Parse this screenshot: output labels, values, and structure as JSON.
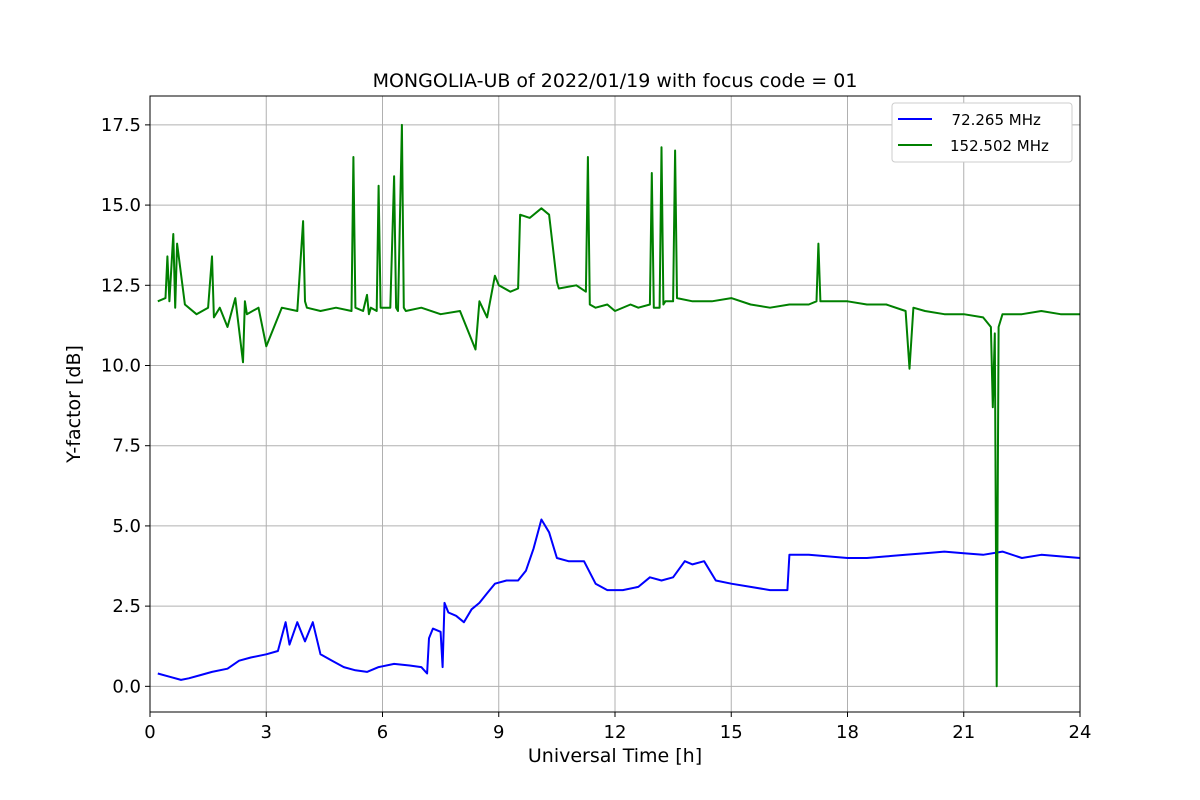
{
  "chart_data": {
    "type": "line",
    "title": "MONGOLIA-UB of 2022/01/19 with focus code = 01",
    "xlabel": "Universal Time [h]",
    "ylabel": "Y-factor [dB]",
    "xlim": [
      0,
      24
    ],
    "ylim": [
      -0.8,
      18.4
    ],
    "xticks": [
      0,
      3,
      6,
      9,
      12,
      15,
      18,
      21,
      24
    ],
    "xtick_labels": [
      "0",
      "3",
      "6",
      "9",
      "12",
      "15",
      "18",
      "21",
      "24"
    ],
    "yticks": [
      0,
      2.5,
      5,
      7.5,
      10,
      12.5,
      15,
      17.5
    ],
    "ytick_labels": [
      "0.0",
      "2.5",
      "5.0",
      "7.5",
      "10.0",
      "12.5",
      "15.0",
      "17.5"
    ],
    "grid": true,
    "legend_position": "top-right",
    "series": [
      {
        "name": "  72.265 MHz",
        "color": "#0000ff",
        "x": [
          0.2,
          0.5,
          0.8,
          1.0,
          1.3,
          1.6,
          2.0,
          2.3,
          2.6,
          3.0,
          3.3,
          3.5,
          3.6,
          3.8,
          4.0,
          4.2,
          4.4,
          4.7,
          5.0,
          5.3,
          5.6,
          5.9,
          6.3,
          6.7,
          7.0,
          7.15,
          7.2,
          7.3,
          7.5,
          7.55,
          7.6,
          7.7,
          7.9,
          8.1,
          8.3,
          8.5,
          8.7,
          8.9,
          9.2,
          9.5,
          9.7,
          9.9,
          10.1,
          10.3,
          10.5,
          10.8,
          11.2,
          11.5,
          11.8,
          12.2,
          12.6,
          12.9,
          13.2,
          13.5,
          13.8,
          14.0,
          14.3,
          14.6,
          15.0,
          15.5,
          16.0,
          16.45,
          16.5,
          17.0,
          17.5,
          18.0,
          18.5,
          19.0,
          19.5,
          20.0,
          20.5,
          21.0,
          21.5,
          22.0,
          22.5,
          23.0,
          23.5,
          24.0
        ],
        "y": [
          0.4,
          0.3,
          0.2,
          0.25,
          0.35,
          0.45,
          0.55,
          0.8,
          0.9,
          1.0,
          1.1,
          2.0,
          1.3,
          2.0,
          1.4,
          2.0,
          1.0,
          0.8,
          0.6,
          0.5,
          0.45,
          0.6,
          0.7,
          0.65,
          0.6,
          0.4,
          1.5,
          1.8,
          1.7,
          0.6,
          2.6,
          2.3,
          2.2,
          2.0,
          2.4,
          2.6,
          2.9,
          3.2,
          3.3,
          3.3,
          3.6,
          4.3,
          5.2,
          4.8,
          4.0,
          3.9,
          3.9,
          3.2,
          3.0,
          3.0,
          3.1,
          3.4,
          3.3,
          3.4,
          3.9,
          3.8,
          3.9,
          3.3,
          3.2,
          3.1,
          3.0,
          3.0,
          4.1,
          4.1,
          4.05,
          4.0,
          4.0,
          4.05,
          4.1,
          4.15,
          4.2,
          4.15,
          4.1,
          4.2,
          4.0,
          4.1,
          4.05,
          4.0
        ]
      },
      {
        "name": "152.502 MHz",
        "color": "#008000",
        "x": [
          0.2,
          0.4,
          0.45,
          0.5,
          0.6,
          0.65,
          0.7,
          0.9,
          1.2,
          1.5,
          1.6,
          1.65,
          1.8,
          2.0,
          2.2,
          2.4,
          2.45,
          2.5,
          2.8,
          3.0,
          3.4,
          3.8,
          3.95,
          4.0,
          4.05,
          4.4,
          4.8,
          5.2,
          5.25,
          5.3,
          5.5,
          5.6,
          5.65,
          5.7,
          5.85,
          5.9,
          5.95,
          6.2,
          6.3,
          6.35,
          6.4,
          6.5,
          6.55,
          6.6,
          7.0,
          7.5,
          8.0,
          8.4,
          8.5,
          8.7,
          8.9,
          9.0,
          9.3,
          9.5,
          9.55,
          9.8,
          10.1,
          10.3,
          10.5,
          10.55,
          11.0,
          11.25,
          11.3,
          11.35,
          11.5,
          11.8,
          12.0,
          12.4,
          12.6,
          12.9,
          12.95,
          13.0,
          13.15,
          13.2,
          13.25,
          13.3,
          13.5,
          13.55,
          13.6,
          14.0,
          14.5,
          15.0,
          15.5,
          16.0,
          16.5,
          17.0,
          17.2,
          17.25,
          17.3,
          17.5,
          18.0,
          18.5,
          19.0,
          19.5,
          19.6,
          19.7,
          20.0,
          20.5,
          21.0,
          21.5,
          21.7,
          21.75,
          21.8,
          21.85,
          21.9,
          22.0,
          22.5,
          23.0,
          23.5,
          24.0
        ],
        "y": [
          12.0,
          12.1,
          13.4,
          12.0,
          14.1,
          11.8,
          13.8,
          11.9,
          11.6,
          11.8,
          13.4,
          11.5,
          11.8,
          11.2,
          12.1,
          10.1,
          12.0,
          11.6,
          11.8,
          10.6,
          11.8,
          11.7,
          14.5,
          12.0,
          11.8,
          11.7,
          11.8,
          11.7,
          16.5,
          11.8,
          11.7,
          12.2,
          11.6,
          11.8,
          11.7,
          15.6,
          11.8,
          11.8,
          15.9,
          11.8,
          11.7,
          17.5,
          11.8,
          11.7,
          11.8,
          11.6,
          11.7,
          10.5,
          12.0,
          11.5,
          12.8,
          12.5,
          12.3,
          12.4,
          14.7,
          14.6,
          14.9,
          14.7,
          12.6,
          12.4,
          12.5,
          12.3,
          16.5,
          11.9,
          11.8,
          11.9,
          11.7,
          11.9,
          11.8,
          11.9,
          16.0,
          11.8,
          11.8,
          16.8,
          11.9,
          12.0,
          12.0,
          16.7,
          12.1,
          12.0,
          12.0,
          12.1,
          11.9,
          11.8,
          11.9,
          11.9,
          12.0,
          13.8,
          12.0,
          12.0,
          12.0,
          11.9,
          11.9,
          11.7,
          9.9,
          11.8,
          11.7,
          11.6,
          11.6,
          11.5,
          11.2,
          8.7,
          11.0,
          0.0,
          11.2,
          11.6,
          11.6,
          11.7,
          11.6,
          11.6
        ]
      }
    ]
  }
}
